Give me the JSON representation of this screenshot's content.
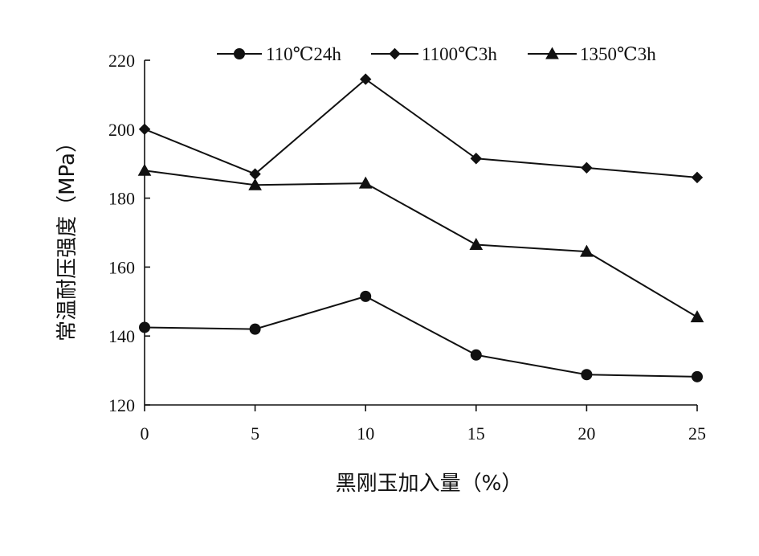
{
  "chart_data": {
    "type": "line",
    "xlabel": "黑刚玉加入量（%）",
    "ylabel": "常温耐压强度（MPa）",
    "x": [
      0,
      5,
      10,
      15,
      20,
      25
    ],
    "xlim": [
      0,
      25
    ],
    "ylim": [
      120,
      220
    ],
    "x_ticks": [
      "0",
      "5",
      "10",
      "15",
      "20",
      "25"
    ],
    "y_ticks": [
      "120",
      "140",
      "160",
      "180",
      "200",
      "220"
    ],
    "grid": false,
    "legend_position": "top",
    "series": [
      {
        "name": "110℃24h",
        "marker": "circle",
        "values": [
          142.5,
          142,
          151.5,
          134.5,
          128.8,
          128.2
        ]
      },
      {
        "name": "1100℃3h",
        "marker": "diamond",
        "values": [
          200,
          187,
          214.5,
          191.5,
          188.8,
          186
        ]
      },
      {
        "name": "1350℃3h",
        "marker": "triangle",
        "values": [
          188,
          183.8,
          184.3,
          166.5,
          164.5,
          145.5
        ]
      }
    ]
  }
}
